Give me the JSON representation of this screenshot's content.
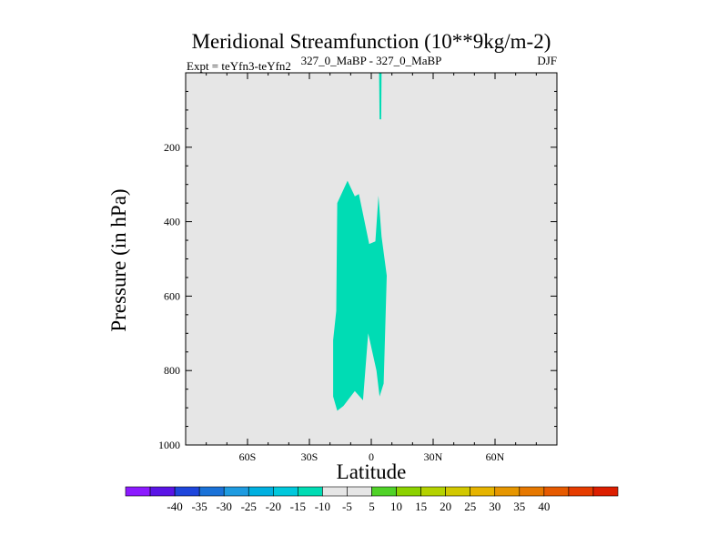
{
  "chart_data": {
    "type": "contour",
    "title": "Meridional Streamfunction (10**9kg/m-2)",
    "left_label": "Expt = teYfn3-teYfn2",
    "center_label": "327_0_MaBP - 327_0_MaBP",
    "right_label": "DJF",
    "xlabel": "Latitude",
    "ylabel": "Pressure (in hPa)",
    "xlim": [
      -90,
      90
    ],
    "ylim": [
      0,
      1000
    ],
    "y_reversed": true,
    "x_ticks": [
      {
        "value": -60,
        "label": "60S"
      },
      {
        "value": -30,
        "label": "30S"
      },
      {
        "value": 0,
        "label": "0"
      },
      {
        "value": 30,
        "label": "30N"
      },
      {
        "value": 60,
        "label": "60N"
      }
    ],
    "y_ticks": [
      {
        "value": 200,
        "label": "200"
      },
      {
        "value": 400,
        "label": "400"
      },
      {
        "value": 600,
        "label": "600"
      },
      {
        "value": 800,
        "label": "800"
      },
      {
        "value": 1000,
        "label": "1000"
      }
    ],
    "background_fill": "#e6e6e6",
    "regions": [
      {
        "name": "region-minus5-lower",
        "level_range": [
          -10,
          -5
        ],
        "color": "#00dcb4",
        "points": [
          [
            -18.5,
            870
          ],
          [
            -16.5,
            908
          ],
          [
            -13.5,
            895
          ],
          [
            -8,
            855
          ],
          [
            -4,
            880
          ],
          [
            -1.5,
            700
          ],
          [
            2.5,
            800
          ],
          [
            4,
            870
          ],
          [
            6,
            835
          ],
          [
            7.5,
            545
          ],
          [
            5,
            440
          ],
          [
            3.5,
            330
          ],
          [
            2,
            453
          ],
          [
            -1,
            460
          ],
          [
            -6,
            326
          ],
          [
            -8,
            332
          ],
          [
            -11.5,
            290
          ],
          [
            -16.5,
            350
          ],
          [
            -17,
            640
          ],
          [
            -18.5,
            718
          ]
        ]
      },
      {
        "name": "region-minus5-upper",
        "level_range": [
          -10,
          -5
        ],
        "color": "#00dcb4",
        "points": [
          [
            3.8,
            0
          ],
          [
            5,
            0
          ],
          [
            4.8,
            125
          ],
          [
            4,
            125
          ]
        ]
      }
    ],
    "colorbar": {
      "colors": [
        "#8c1aff",
        "#5a14e6",
        "#1e46dc",
        "#1a72d8",
        "#1e9be0",
        "#00b0e0",
        "#00c8dc",
        "#00dcb4",
        "#e6e6e6",
        "#e6e6e6",
        "#50d228",
        "#8cd200",
        "#b4d200",
        "#d2c800",
        "#e6b400",
        "#e69600",
        "#e67800",
        "#e65a00",
        "#e63c00",
        "#dc1e00"
      ],
      "tick_labels": [
        "-40",
        "-35",
        "-30",
        "-25",
        "-20",
        "-15",
        "-10",
        "-5",
        "5",
        "10",
        "15",
        "20",
        "25",
        "30",
        "35",
        "40"
      ]
    }
  }
}
